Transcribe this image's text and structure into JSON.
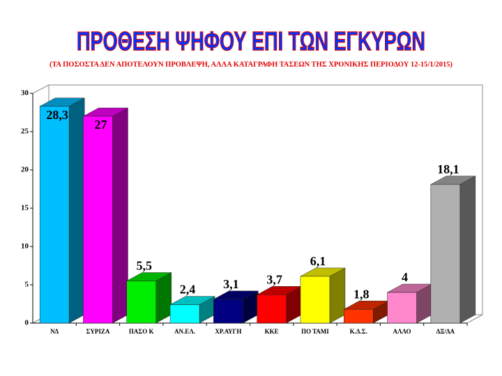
{
  "chart_data": {
    "type": "bar3d",
    "title": "ΠΡΟΘΕΣΗ ΨΗΦΟΥ ΕΠΙ ΤΩΝ ΕΓΚΥΡΩΝ",
    "subtitle": "(ΤΑ ΠΟΣΟΣΤΑ ΔΕΝ ΑΠΟΤΕΛΟΥΝ ΠΡΟΒΛΕΨΗ,  ΑΛΛΑ ΚΑΤΑΓΡΑΦΗ ΤΑΣΕΩΝ ΤΗΣ ΧΡΟΝΙΚΗΣ ΠΕΡΙΟΔΟΥ 12-15/1/2015)",
    "categories": [
      "ΝΔ",
      "ΣΥΡΙΖΑ",
      "ΠΑΣΟ Κ",
      "ΑΝ.ΕΛ.",
      "ΧΡ.ΑΥΓΗ",
      "ΚΚΕ",
      "ΠΟ ΤΑΜΙ",
      "Κ.Δ.Σ.",
      "ΑΛΛΟ",
      "ΔΞ/ΔΑ"
    ],
    "values": [
      28.3,
      27,
      5.5,
      2.4,
      3.1,
      3.7,
      6.1,
      1.8,
      4,
      18.1
    ],
    "value_labels": [
      "28,3",
      "27",
      "5,5",
      "2,4",
      "3,1",
      "3,7",
      "6,1",
      "1,8",
      "4",
      "18,1"
    ],
    "colors": [
      "#00bfff",
      "#ff00ff",
      "#00ee00",
      "#00ffff",
      "#000080",
      "#ff0000",
      "#ffff00",
      "#ff3300",
      "#ff88cc",
      "#b0b0b0"
    ],
    "ylim": [
      0,
      30
    ],
    "yticks": [
      0,
      5,
      10,
      15,
      20,
      25,
      30
    ]
  }
}
